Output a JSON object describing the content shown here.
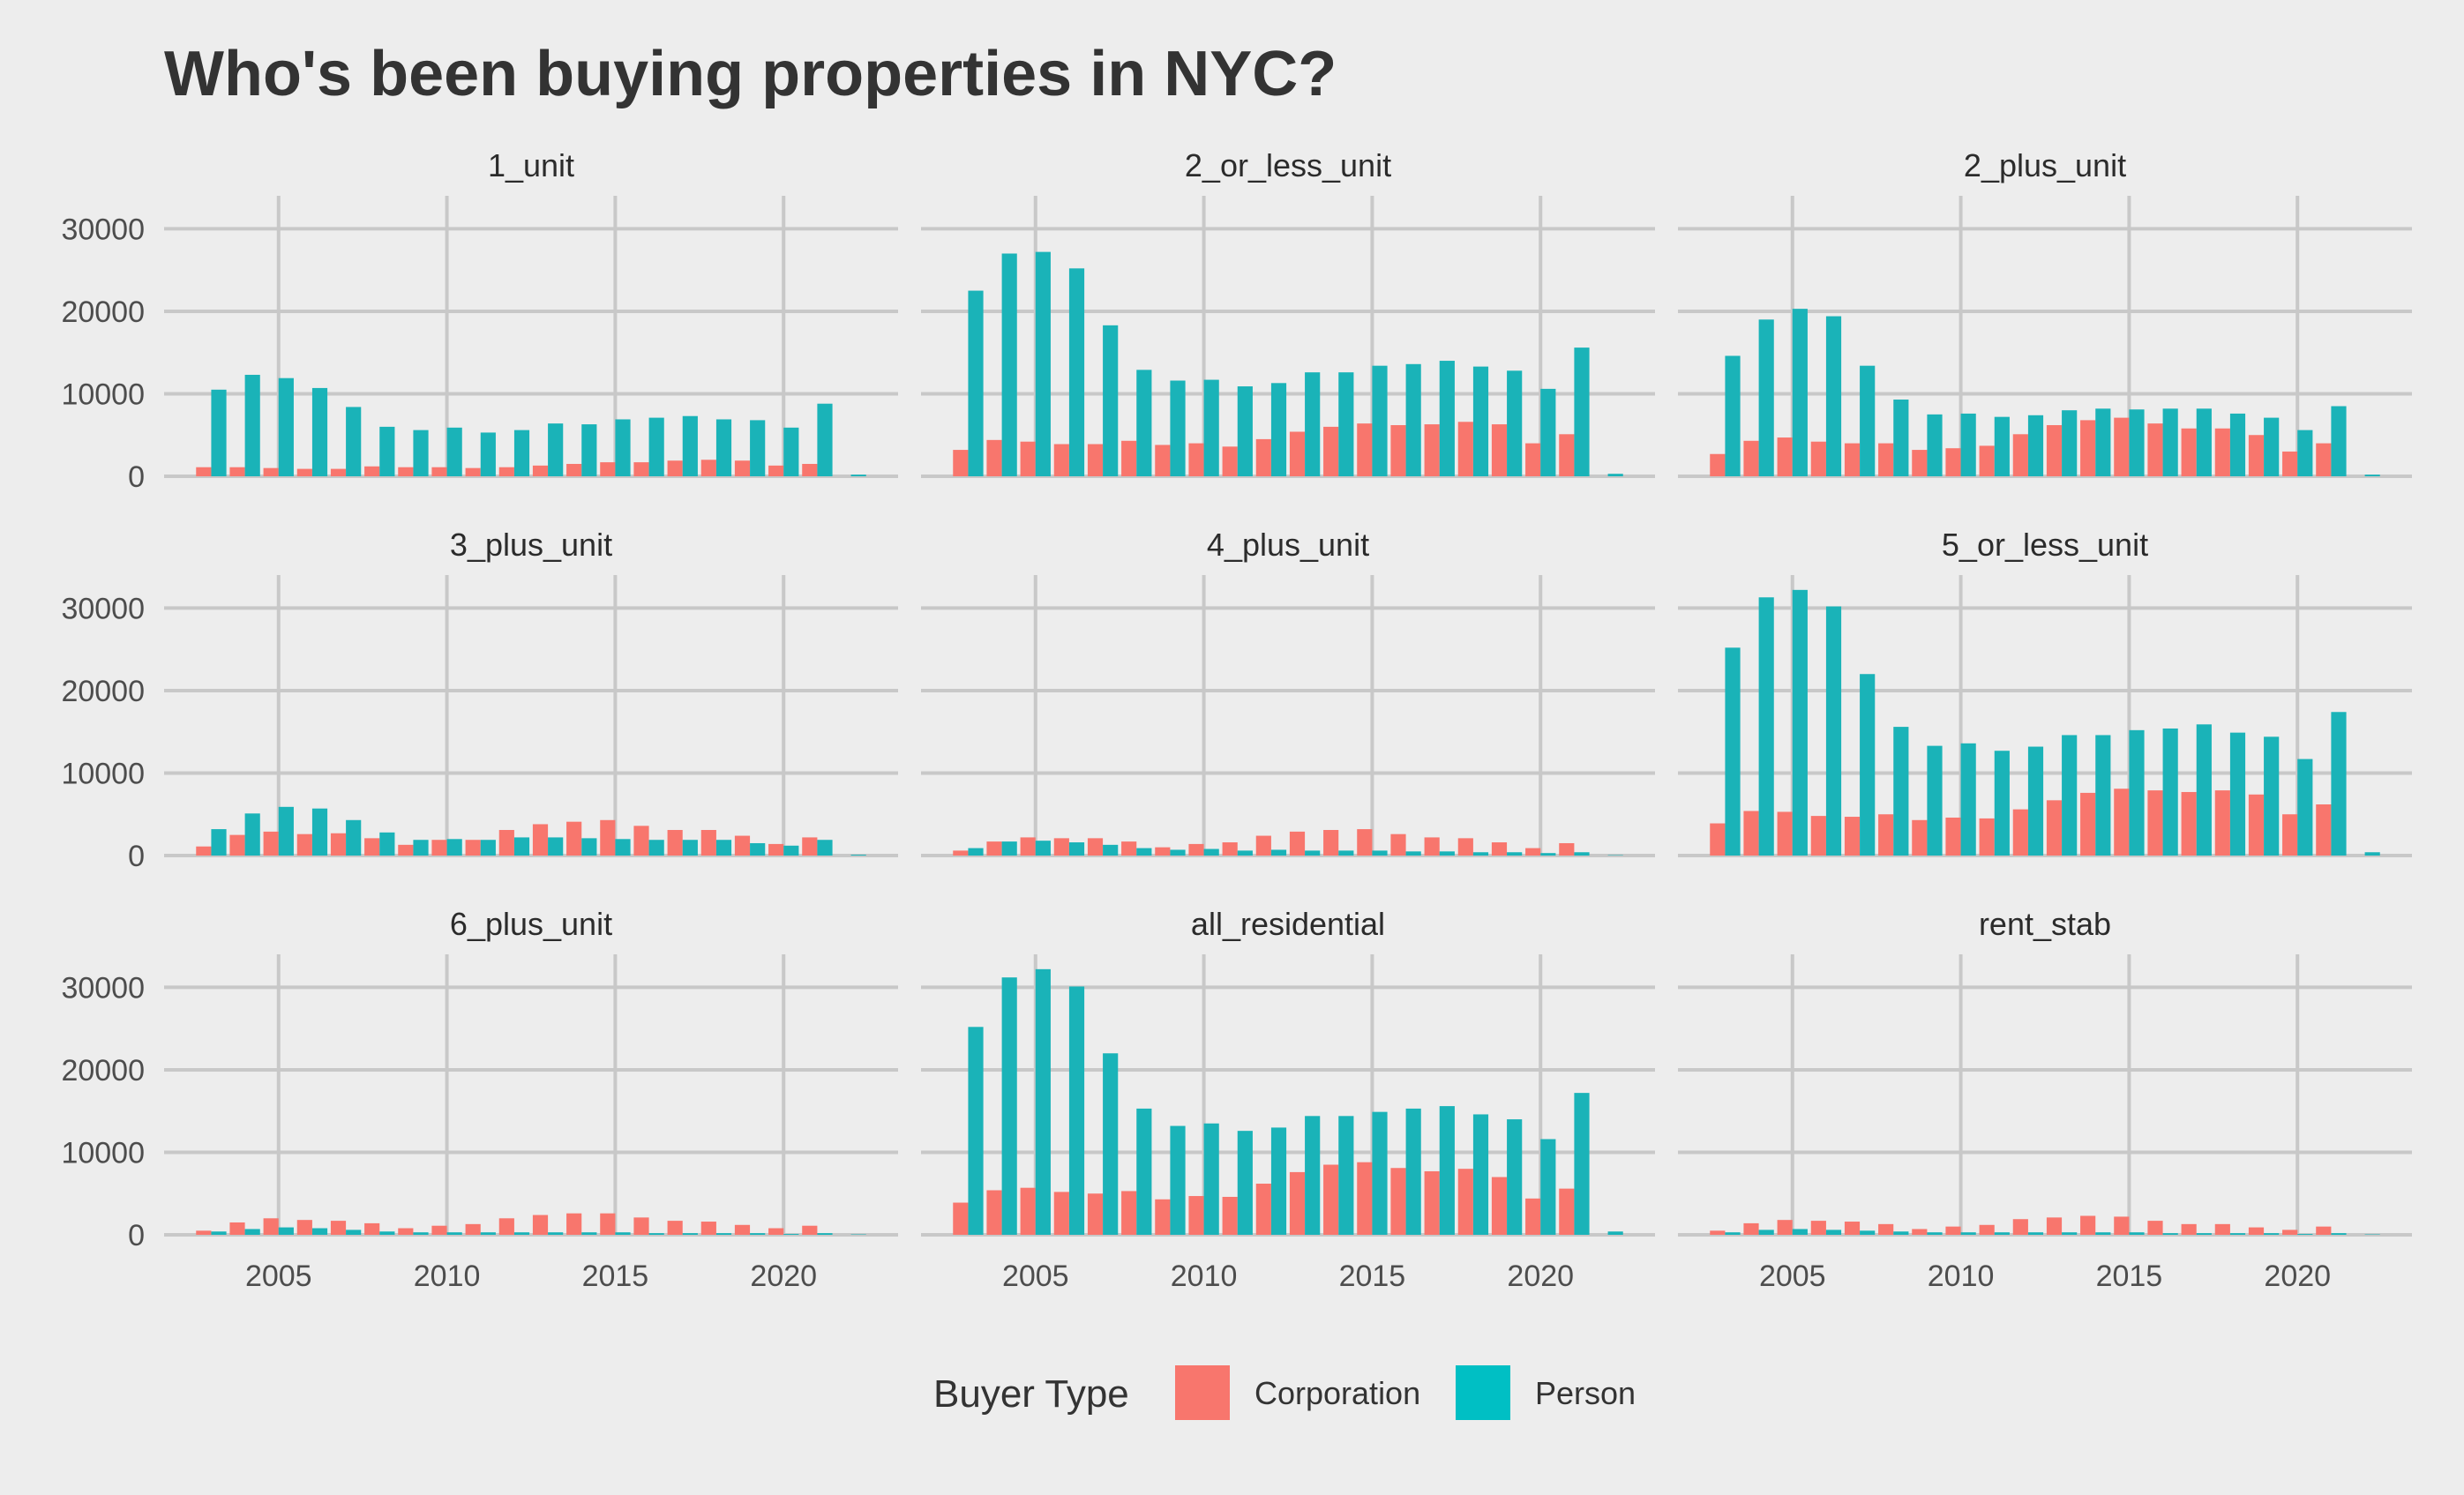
{
  "chart_data": {
    "type": "bar",
    "title": "Who's been buying properties in NYC?",
    "x": [
      2003,
      2004,
      2005,
      2006,
      2007,
      2008,
      2009,
      2010,
      2011,
      2012,
      2013,
      2014,
      2015,
      2016,
      2017,
      2018,
      2019,
      2020,
      2021,
      2022
    ],
    "xticks": [
      2005,
      2010,
      2015,
      2020
    ],
    "xlim": [
      2001.6,
      2023.4
    ],
    "yticks": [
      0,
      10000,
      20000,
      30000
    ],
    "ylim": [
      0,
      34000
    ],
    "grid": true,
    "legend": {
      "title": "Buyer Type",
      "position": "bottom",
      "entries": [
        {
          "name": "Corporation",
          "color": "#f8766d"
        },
        {
          "name": "Person",
          "color": "#00bfc4"
        }
      ]
    },
    "colors": {
      "Corporation": "#f8766d",
      "Person": "#1ab3b8"
    },
    "panels": [
      {
        "name": "1_unit",
        "series": [
          {
            "name": "Corporation",
            "values": [
              1100,
              1100,
              1000,
              900,
              900,
              1200,
              1100,
              1100,
              1000,
              1100,
              1300,
              1500,
              1700,
              1700,
              1900,
              2000,
              1900,
              1300,
              1500,
              0
            ]
          },
          {
            "name": "Person",
            "values": [
              10500,
              12300,
              11900,
              10700,
              8400,
              6000,
              5600,
              5900,
              5300,
              5600,
              6400,
              6300,
              6900,
              7100,
              7300,
              6900,
              6800,
              5900,
              8800,
              200
            ]
          }
        ]
      },
      {
        "name": "2_or_less_unit",
        "series": [
          {
            "name": "Corporation",
            "values": [
              3200,
              4400,
              4200,
              3900,
              3900,
              4300,
              3800,
              4000,
              3600,
              4500,
              5400,
              6000,
              6400,
              6200,
              6300,
              6600,
              6300,
              4000,
              5100,
              0
            ]
          },
          {
            "name": "Person",
            "values": [
              22500,
              27000,
              27200,
              25200,
              18300,
              12900,
              11600,
              11700,
              10900,
              11300,
              12600,
              12600,
              13400,
              13600,
              14000,
              13300,
              12800,
              10600,
              15600,
              300
            ]
          }
        ]
      },
      {
        "name": "2_plus_unit",
        "series": [
          {
            "name": "Corporation",
            "values": [
              2700,
              4300,
              4700,
              4200,
              4000,
              4000,
              3200,
              3400,
              3700,
              5100,
              6200,
              6800,
              7100,
              6400,
              5800,
              5800,
              5000,
              3000,
              4000,
              0
            ]
          },
          {
            "name": "Person",
            "values": [
              14600,
              19000,
              20300,
              19400,
              13400,
              9300,
              7500,
              7600,
              7200,
              7400,
              8000,
              8200,
              8100,
              8200,
              8200,
              7600,
              7100,
              5600,
              8500,
              200
            ]
          }
        ]
      },
      {
        "name": "3_plus_unit",
        "series": [
          {
            "name": "Corporation",
            "values": [
              1100,
              2500,
              2900,
              2600,
              2700,
              2100,
              1300,
              1900,
              1900,
              3100,
              3800,
              4100,
              4300,
              3600,
              3100,
              3100,
              2400,
              1400,
              2200,
              0
            ]
          },
          {
            "name": "Person",
            "values": [
              3200,
              5100,
              5900,
              5700,
              4300,
              2800,
              1900,
              2000,
              1900,
              2200,
              2200,
              2100,
              2000,
              1900,
              1900,
              1900,
              1500,
              1200,
              1900,
              100
            ]
          }
        ]
      },
      {
        "name": "4_plus_unit",
        "series": [
          {
            "name": "Corporation",
            "values": [
              600,
              1700,
              2200,
              2100,
              2100,
              1700,
              1000,
              1400,
              1600,
              2400,
              2900,
              3100,
              3200,
              2600,
              2200,
              2100,
              1600,
              900,
              1500,
              0
            ]
          },
          {
            "name": "Person",
            "values": [
              900,
              1700,
              1800,
              1600,
              1300,
              900,
              700,
              800,
              600,
              700,
              600,
              600,
              600,
              500,
              500,
              400,
              400,
              300,
              400,
              50
            ]
          }
        ]
      },
      {
        "name": "5_or_less_unit",
        "series": [
          {
            "name": "Corporation",
            "values": [
              3900,
              5400,
              5300,
              4800,
              4700,
              5000,
              4300,
              4600,
              4500,
              5600,
              6700,
              7600,
              8100,
              7900,
              7700,
              7900,
              7400,
              5000,
              6200,
              0
            ]
          },
          {
            "name": "Person",
            "values": [
              25200,
              31300,
              32200,
              30200,
              22000,
              15600,
              13300,
              13600,
              12700,
              13200,
              14600,
              14600,
              15200,
              15400,
              15900,
              14900,
              14400,
              11700,
              17400,
              400
            ]
          }
        ]
      },
      {
        "name": "6_plus_unit",
        "series": [
          {
            "name": "Corporation",
            "values": [
              500,
              1500,
              2000,
              1800,
              1700,
              1400,
              800,
              1100,
              1300,
              2000,
              2400,
              2600,
              2600,
              2100,
              1700,
              1600,
              1200,
              800,
              1100,
              0
            ]
          },
          {
            "name": "Person",
            "values": [
              400,
              700,
              900,
              800,
              600,
              400,
              300,
              300,
              300,
              300,
              300,
              300,
              300,
              200,
              200,
              200,
              200,
              100,
              200,
              50
            ]
          }
        ]
      },
      {
        "name": "all_residential",
        "series": [
          {
            "name": "Corporation",
            "values": [
              3900,
              5400,
              5700,
              5200,
              5000,
              5300,
              4300,
              4700,
              4600,
              6200,
              7600,
              8500,
              8800,
              8100,
              7700,
              8000,
              7000,
              4400,
              5600,
              0
            ]
          },
          {
            "name": "Person",
            "values": [
              25200,
              31200,
              32200,
              30100,
              22000,
              15300,
              13200,
              13500,
              12600,
              13000,
              14400,
              14400,
              14900,
              15300,
              15600,
              14600,
              14000,
              11600,
              17200,
              400
            ]
          }
        ]
      },
      {
        "name": "rent_stab",
        "series": [
          {
            "name": "Corporation",
            "values": [
              500,
              1400,
              1800,
              1700,
              1600,
              1300,
              700,
              1000,
              1200,
              1900,
              2100,
              2300,
              2200,
              1700,
              1300,
              1300,
              900,
              600,
              1000,
              0
            ]
          },
          {
            "name": "Person",
            "values": [
              300,
              600,
              700,
              600,
              500,
              400,
              300,
              300,
              300,
              300,
              300,
              300,
              300,
              200,
              200,
              200,
              200,
              100,
              200,
              50
            ]
          }
        ]
      }
    ]
  }
}
